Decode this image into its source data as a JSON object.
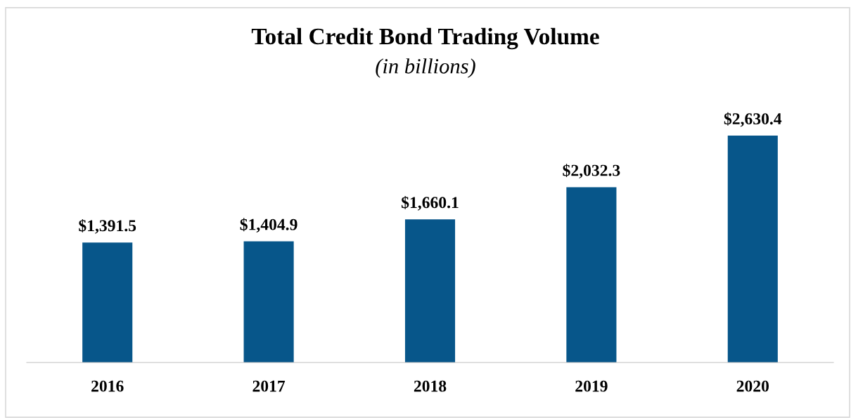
{
  "chart_data": {
    "type": "bar",
    "title": "Total Credit Bond Trading Volume",
    "subtitle": "(in billions)",
    "categories": [
      "2016",
      "2017",
      "2018",
      "2019",
      "2020"
    ],
    "values": [
      1391.5,
      1404.9,
      1660.1,
      2032.3,
      2630.4
    ],
    "value_labels": [
      "$1,391.5",
      "$1,404.9",
      "$1,660.1",
      "$2,032.3",
      "$2,630.4"
    ],
    "color": "#07568a",
    "grid": false,
    "legend": false
  }
}
